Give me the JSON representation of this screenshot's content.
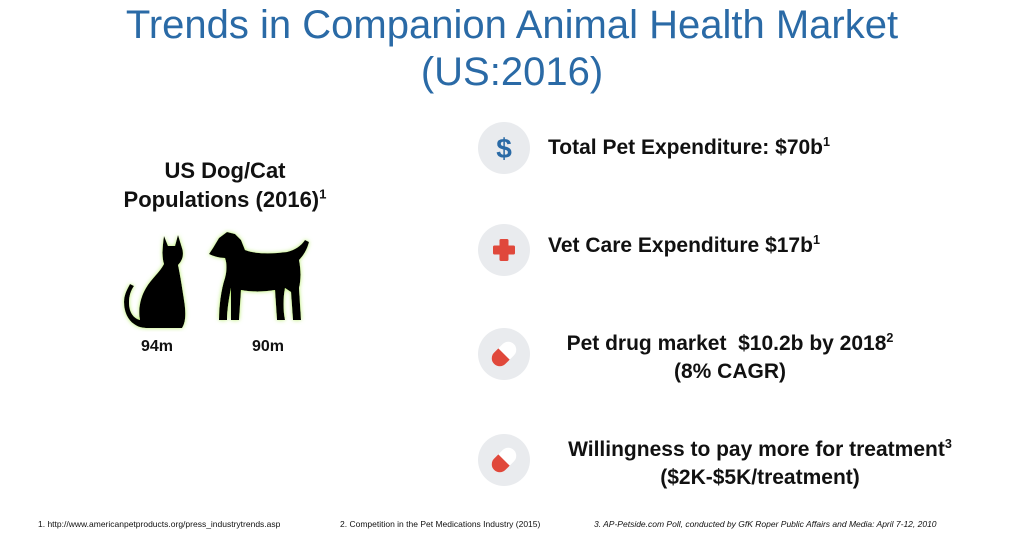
{
  "title": {
    "line1": "Trends in Companion Animal Health Market",
    "line2": "(US:2016)"
  },
  "populations": {
    "heading_line1": "US Dog/Cat",
    "heading_line2": "Populations (2016)",
    "heading_sup": "1",
    "cat_count": "94m",
    "dog_count": "90m",
    "cat_icon": "cat-silhouette-icon",
    "dog_icon": "dog-silhouette-icon",
    "glow_color": "#b6ec6a"
  },
  "stats": [
    {
      "icon": "dollar-icon",
      "text": "Total Pet Expenditure: $70b",
      "sup": "1"
    },
    {
      "icon": "medical-cross-icon",
      "text": "Vet Care Expenditure $17b",
      "sup": "1"
    },
    {
      "icon": "pill-icon",
      "line1": "Pet drug market  $10.2b by 2018",
      "sup": "2",
      "line2": "(8% CAGR)"
    },
    {
      "icon": "pill-icon",
      "line1": "Willingness to pay more for treatment",
      "sup": "3",
      "line2": "($2K-$5K/treatment)"
    }
  ],
  "colors": {
    "title": "#2a6aa6",
    "dollar": "#2a6aa6",
    "red": "#e0483b",
    "circle_bg": "#e9ebee"
  },
  "footnotes": [
    "1. http://www.americanpetproducts.org/press_industrytrends.asp",
    "2. Competition in the Pet Medications Industry (2015)",
    "3. AP-Petside.com Poll, conducted by GfK Roper Public Affairs and Media: April 7-12, 2010"
  ]
}
